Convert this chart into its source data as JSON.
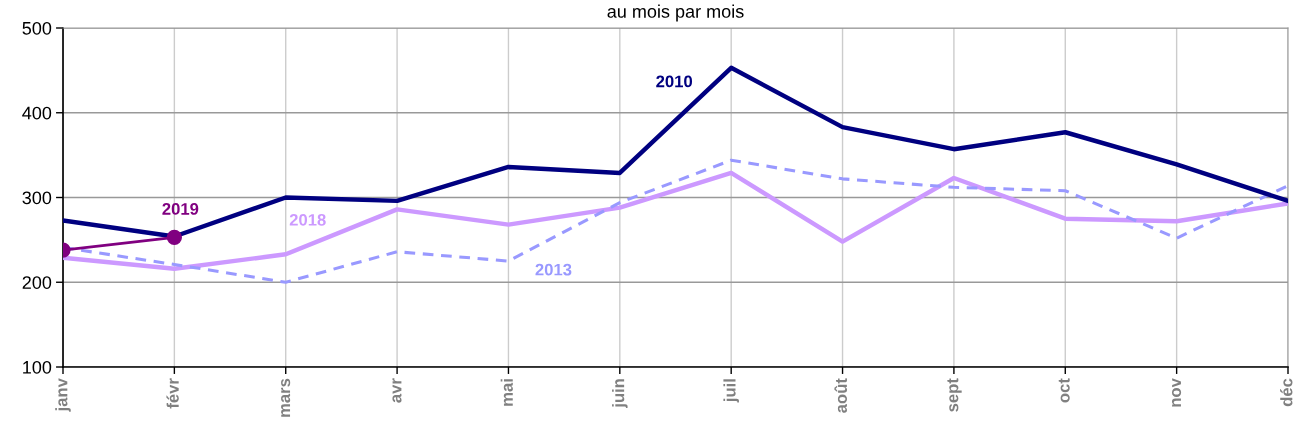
{
  "chart_data": {
    "type": "line",
    "title": "au mois par mois",
    "categories": [
      "janv",
      "févr",
      "mars",
      "avr",
      "mai",
      "juin",
      "juil",
      "août",
      "sept",
      "oct",
      "nov",
      "déc"
    ],
    "series": [
      {
        "name": "2010",
        "color": "#000080",
        "line_style": "solid",
        "marker": "none",
        "values": [
          273,
          254,
          300,
          296,
          336,
          329,
          453,
          383,
          357,
          377,
          339,
          296
        ]
      },
      {
        "name": "2013",
        "color": "#9999ff",
        "line_style": "dashed",
        "marker": "none",
        "values": [
          241,
          221,
          200,
          236,
          225,
          294,
          344,
          322,
          312,
          308,
          252,
          314
        ]
      },
      {
        "name": "2018",
        "color": "#cc99ff",
        "line_style": "solid",
        "marker": "none",
        "values": [
          229,
          216,
          233,
          286,
          268,
          288,
          329,
          248,
          323,
          275,
          272,
          293
        ]
      },
      {
        "name": "2019",
        "color": "#800080",
        "line_style": "solid",
        "marker": "circle",
        "values": [
          238,
          253,
          null,
          null,
          null,
          null,
          null,
          null,
          null,
          null,
          null,
          null
        ]
      }
    ],
    "ylim": [
      100,
      500
    ],
    "yticks": [
      100,
      200,
      300,
      400,
      500
    ],
    "grid": true
  }
}
